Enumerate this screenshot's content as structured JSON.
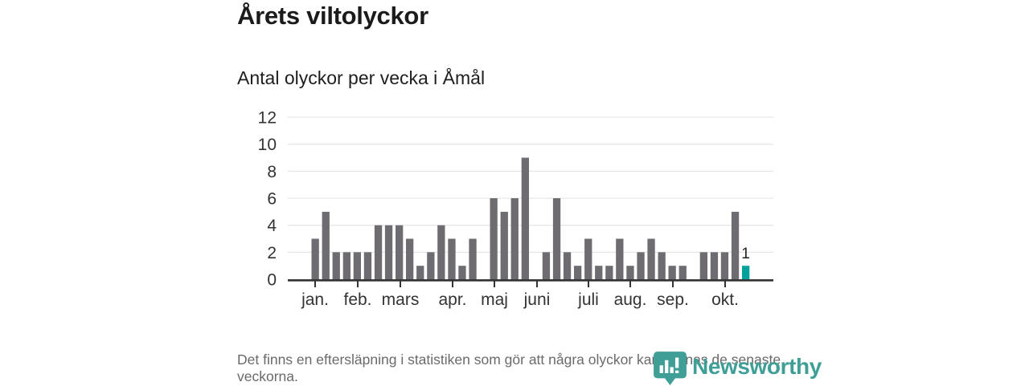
{
  "header": {
    "title": "Årets viltolyckor",
    "subtitle": "Antal olyckor per vecka i Åmål"
  },
  "footer": {
    "note": "Det finns en eftersläpning i statistiken som gör att några olyckor kan saknas de senaste veckorna.",
    "brand": "Newsworthy"
  },
  "colors": {
    "bar": "#6e6c71",
    "highlight": "#00a29b",
    "grid": "#e7e7e7",
    "axis": "#333333",
    "tick_label": "#333333",
    "annotation": "#222222",
    "note_text": "#6a6a6a",
    "brand_teal": "#3f9e96"
  },
  "chart_data": {
    "type": "bar",
    "title": "Årets viltolyckor",
    "subtitle": "Antal olyckor per vecka i Åmål",
    "x_unit": "vecka (week of year)",
    "values": [
      3,
      5,
      2,
      2,
      2,
      2,
      4,
      4,
      4,
      3,
      1,
      2,
      4,
      3,
      1,
      3,
      0,
      6,
      5,
      6,
      9,
      0,
      2,
      6,
      2,
      1,
      3,
      1,
      1,
      3,
      1,
      2,
      3,
      2,
      1,
      1,
      0,
      2,
      2,
      2,
      5,
      1
    ],
    "highlight_last": true,
    "last_value_label": "1",
    "x_tick_labels": [
      "jan.",
      "feb.",
      "mars",
      "apr.",
      "maj",
      "juni",
      "juli",
      "aug.",
      "sep.",
      "okt."
    ],
    "x_tick_positions": [
      0.0563,
      0.144,
      0.2318,
      0.3394,
      0.4255,
      0.5132,
      0.6192,
      0.7053,
      0.793,
      0.9007
    ],
    "y_ticks": [
      0,
      2,
      4,
      6,
      8,
      10,
      12
    ],
    "ylim": [
      0,
      12
    ],
    "grid": true,
    "legend": "none"
  }
}
